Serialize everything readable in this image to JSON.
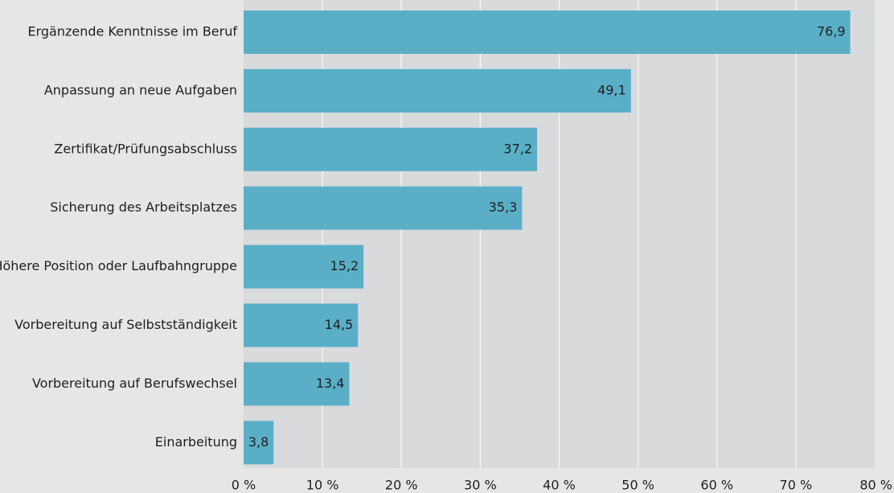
{
  "chart_data": {
    "type": "bar",
    "orientation": "horizontal",
    "categories": [
      "Ergänzende Kenntnisse im Beruf",
      "Anpassung an neue Aufgaben",
      "Zertifikat/Prüfungsabschluss",
      "Sicherung des Arbeitsplatzes",
      "Höhere Position oder Laufbahngruppe",
      "Vorbereitung auf Selbstständigkeit",
      "Vorbereitung auf Berufswechsel",
      "Einarbeitung"
    ],
    "values": [
      76.9,
      49.1,
      37.2,
      35.3,
      15.2,
      14.5,
      13.4,
      3.8
    ],
    "value_labels": [
      "76,9",
      "49,1",
      "37,2",
      "35,3",
      "15,2",
      "14,5",
      "13,4",
      "3,8"
    ],
    "xlim": [
      0,
      80
    ],
    "x_ticks": [
      0,
      10,
      20,
      30,
      40,
      50,
      60,
      70,
      80
    ],
    "x_tick_labels": [
      "0 %",
      "10 %",
      "20 %",
      "30 %",
      "40 %",
      "50 %",
      "60 %",
      "70 %",
      "80 %"
    ],
    "grid": "vertical",
    "title": "",
    "xlabel": "",
    "ylabel": "",
    "colors": {
      "bar": "#5aafc7",
      "plot_background": "#d9dadc",
      "page_background": "#e6e6e6",
      "gridline": "#f4f4f4",
      "text": "#1f1f1f"
    }
  }
}
